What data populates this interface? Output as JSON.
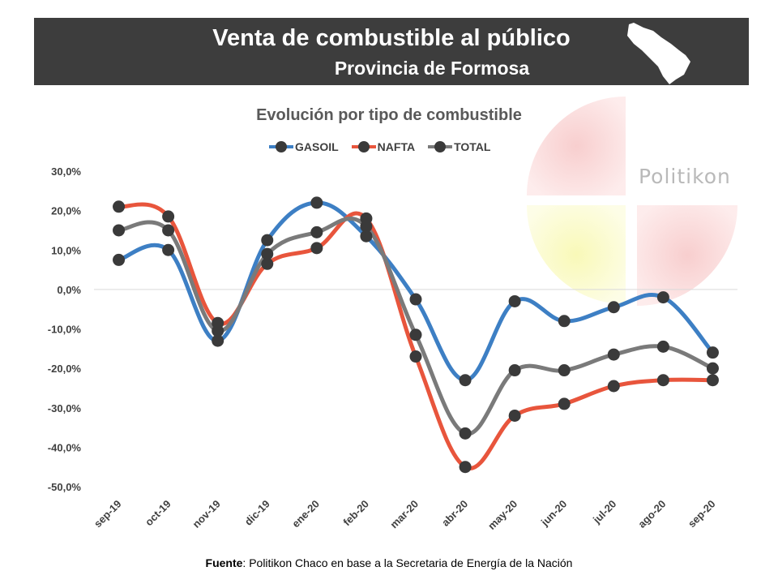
{
  "header": {
    "title": "Venta de combustible al público",
    "subtitle": "Provincia de Formosa"
  },
  "watermark": {
    "text": "Politikon"
  },
  "source": {
    "label": "Fuente",
    "text": ": Politikon Chaco en base a la Secretaria de Energía de la Nación"
  },
  "chart_data": {
    "type": "line",
    "title": "Evolución por tipo de combustible",
    "xlabel": "",
    "ylabel": "",
    "ylim": [
      -50,
      30
    ],
    "y_ticks": [
      30,
      20,
      10,
      0,
      -10,
      -20,
      -30,
      -40,
      -50
    ],
    "y_tick_labels": [
      "30,0%",
      "20,0%",
      "10,0%",
      "0,0%",
      "-10,0%",
      "-20,0%",
      "-30,0%",
      "-40,0%",
      "-50,0%"
    ],
    "categories": [
      "sep-19",
      "oct-19",
      "nov-19",
      "dic-19",
      "ene-20",
      "feb-20",
      "mar-20",
      "abr-20",
      "may-20",
      "jun-20",
      "jul-20",
      "ago-20",
      "sep-20"
    ],
    "grid": "zero-line only",
    "legend_position": "top",
    "series": [
      {
        "name": "GASOIL",
        "color": "#3d7fc4",
        "values": [
          7.5,
          10,
          -13,
          12.5,
          22,
          13.5,
          -2.5,
          -23,
          -3,
          -8,
          -4.5,
          -2,
          -16
        ]
      },
      {
        "name": "NAFTA",
        "color": "#e8553c",
        "values": [
          21,
          18.5,
          -8.5,
          6.5,
          10.5,
          18,
          -17,
          -45,
          -32,
          -29,
          -24.5,
          -23,
          -23
        ]
      },
      {
        "name": "TOTAL",
        "color": "#7a7a7a",
        "values": [
          15,
          15,
          -10.5,
          9,
          14.5,
          16,
          -11.5,
          -36.5,
          -20.5,
          -20.5,
          -16.5,
          -14.5,
          -20
        ]
      }
    ]
  }
}
